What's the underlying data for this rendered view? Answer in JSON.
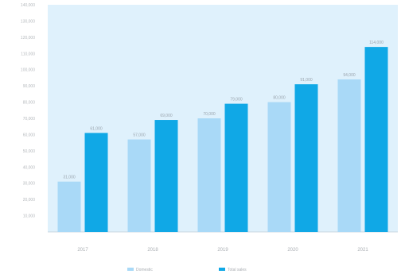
{
  "chart_data": {
    "type": "bar",
    "title": "",
    "xlabel": "",
    "ylabel": "",
    "categories": [
      "2017",
      "2018",
      "2019",
      "2020",
      "2021"
    ],
    "ylim": [
      0,
      140000
    ],
    "yticks": [
      0,
      10000,
      20000,
      30000,
      40000,
      50000,
      60000,
      70000,
      80000,
      90000,
      100000,
      110000,
      120000,
      130000,
      140000
    ],
    "ytick_labels": [
      "",
      "10,000",
      "20,000",
      "30,000",
      "40,000",
      "50,000",
      "60,000",
      "70,000",
      "80,000",
      "90,000",
      "100,000",
      "110,000",
      "120,000",
      "130,000",
      "140,000"
    ],
    "series": [
      {
        "name": "Domestic",
        "color": "#a9d9f7",
        "values": [
          31000,
          57000,
          70000,
          80000,
          94000
        ],
        "labels": [
          "31,000",
          "57,000",
          "70,000",
          "80,000",
          "94,000"
        ]
      },
      {
        "name": "Total sales",
        "color": "#10a8e6",
        "values": [
          61000,
          69000,
          79000,
          91000,
          114000
        ],
        "labels": [
          "61,000",
          "69,000",
          "79,000",
          "91,000",
          "114,000"
        ]
      }
    ],
    "legend_position": "bottom",
    "grid": false,
    "plot_background": "#dff1fc"
  }
}
